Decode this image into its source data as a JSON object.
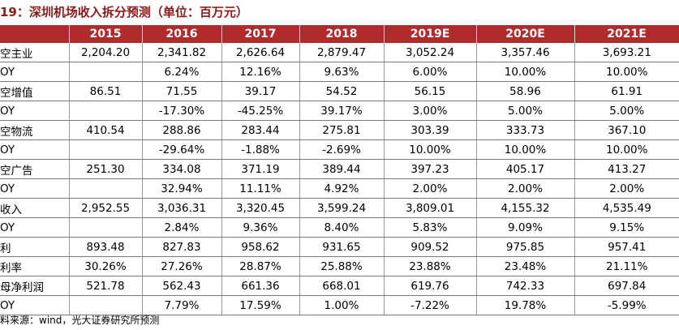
{
  "title": "19：深圳机场收入拆分预测（单位：百万元）",
  "header": [
    "",
    "2015",
    "2016",
    "2017",
    "2018",
    "2019E",
    "2020E",
    "2021E"
  ],
  "rows": [
    [
      "空主业",
      "2,204.20",
      "2,341.82",
      "2,626.64",
      "2,879.47",
      "3,052.24",
      "3,357.46",
      "3,693.21"
    ],
    [
      "OY",
      "",
      "6.24%",
      "12.16%",
      "9.63%",
      "6.00%",
      "10.00%",
      "10.00%"
    ],
    [
      "空增值",
      "86.51",
      "71.55",
      "39.17",
      "54.52",
      "56.15",
      "58.96",
      "61.91"
    ],
    [
      "OY",
      "",
      "-17.30%",
      "-45.25%",
      "39.17%",
      "3.00%",
      "5.00%",
      "5.00%"
    ],
    [
      "空物流",
      "410.54",
      "288.86",
      "283.44",
      "275.81",
      "303.39",
      "333.73",
      "367.10"
    ],
    [
      "OY",
      "",
      "-29.64%",
      "-1.88%",
      "-2.69%",
      "10.00%",
      "10.00%",
      "10.00%"
    ],
    [
      "空广告",
      "251.30",
      "334.08",
      "371.19",
      "389.44",
      "397.23",
      "405.17",
      "413.27"
    ],
    [
      "OY",
      "",
      "32.94%",
      "11.11%",
      "4.92%",
      "2.00%",
      "2.00%",
      "2.00%"
    ],
    [
      "收入",
      "2,952.55",
      "3,036.31",
      "3,320.45",
      "3,599.24",
      "3,809.01",
      "4,155.32",
      "4,535.49"
    ],
    [
      "OY",
      "",
      "2.84%",
      "9.36%",
      "8.40%",
      "5.83%",
      "9.09%",
      "9.15%"
    ],
    [
      "利",
      "893.48",
      "827.83",
      "958.62",
      "931.65",
      "909.52",
      "975.85",
      "957.41"
    ],
    [
      "利率",
      "30.26%",
      "27.26%",
      "28.87%",
      "25.88%",
      "23.88%",
      "23.48%",
      "21.11%"
    ],
    [
      "母净利润",
      "521.78",
      "562.43",
      "661.36",
      "668.01",
      "619.76",
      "742.33",
      "697.84"
    ],
    [
      "OY",
      "",
      "7.79%",
      "17.59%",
      "1.00%",
      "-7.22%",
      "19.78%",
      "-5.99%"
    ]
  ],
  "source": "料来源：wind，光大证券研究所预测"
}
